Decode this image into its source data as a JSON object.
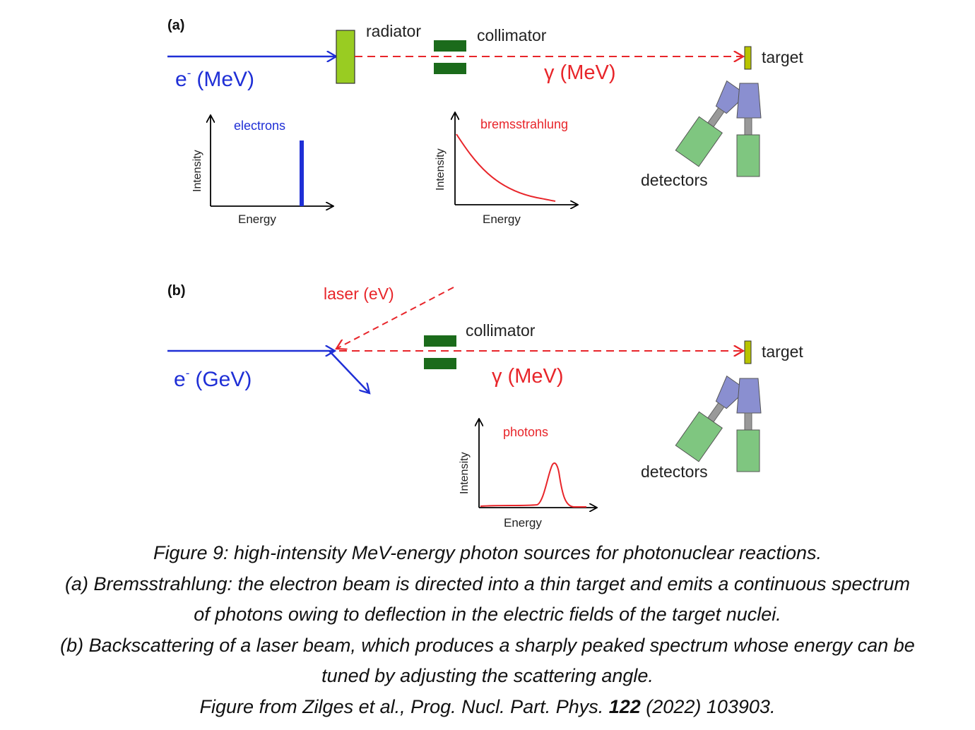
{
  "panel_a": {
    "tag": "(a)",
    "beam": {
      "label_base": "e",
      "label_sup": "-",
      "label_unit": "(MeV)"
    },
    "radiator_label": "radiator",
    "collimator_label": "collimator",
    "gamma_label": "γ (MeV)",
    "target_label": "target",
    "detectors_label": "detectors",
    "plot_electrons": {
      "title": "electrons",
      "xlabel": "Energy",
      "ylabel": "Intensity"
    },
    "plot_brems": {
      "title": "bremsstrahlung",
      "xlabel": "Energy",
      "ylabel": "Intensity"
    }
  },
  "panel_b": {
    "tag": "(b)",
    "laser_label": "laser (eV)",
    "beam": {
      "label_base": "e",
      "label_sup": "-",
      "label_unit": "(GeV)"
    },
    "collimator_label": "collimator",
    "gamma_label": "γ (MeV)",
    "target_label": "target",
    "detectors_label": "detectors",
    "plot_photons": {
      "title": "photons",
      "xlabel": "Energy",
      "ylabel": "Intensity"
    }
  },
  "colors": {
    "electron": "#1f2fd6",
    "photon": "#e8252a",
    "radiator": "#99cc22",
    "collimator": "#1b6b1b",
    "target": "#b8c400",
    "detector_head": "#8a8fd0",
    "detector_body": "#7fc680",
    "axis": "#000000"
  },
  "caption": {
    "line1": "Figure 9: high-intensity MeV-energy photon sources for photonuclear reactions.",
    "line2": "(a) Bremsstrahlung: the electron beam is directed into a thin target and emits a continuous spectrum",
    "line3": "of photons owing to deflection in the electric fields of the target nuclei.",
    "line4": "(b) Backscattering of a laser beam, which produces a sharply peaked spectrum whose energy can be",
    "line5": "tuned by adjusting the scattering angle.",
    "line6_pre": "Figure from Zilges et al., Prog. Nucl. Part. Phys. ",
    "line6_bold": "122",
    "line6_post": " (2022) 103903."
  }
}
